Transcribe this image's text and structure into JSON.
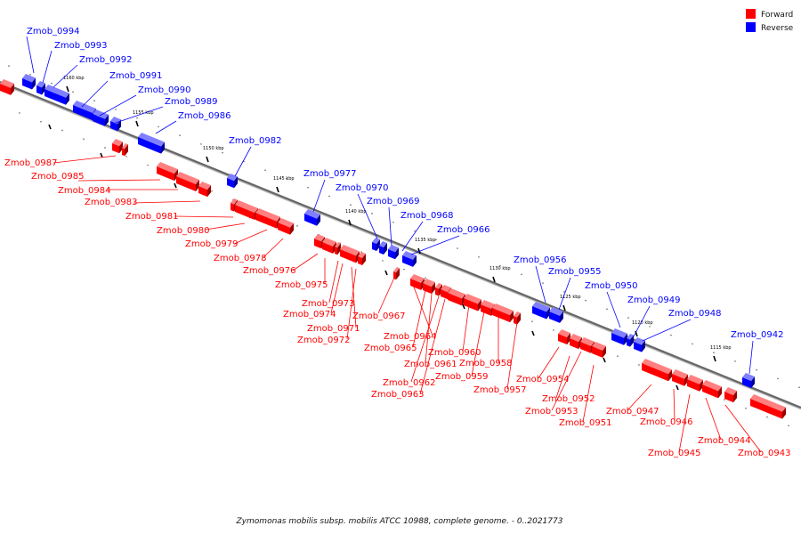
{
  "caption": "Zymomonas mobilis subsp. mobilis ATCC 10988, complete genome. - 0..2021773",
  "legend": [
    {
      "label": "Forward",
      "color": "#ff0000"
    },
    {
      "label": "Reverse",
      "color": "#0000ff"
    }
  ],
  "colors": {
    "forward": "#ff0000",
    "forward_dark": "#990000",
    "forward_light": "#ff8080",
    "reverse": "#0000ff",
    "reverse_dark": "#000099",
    "reverse_light": "#8080ff",
    "backbone": "#666666"
  },
  "ticks": [
    {
      "label": "1160 kbp"
    },
    {
      "label": "1155 kbp"
    },
    {
      "label": "1150 kbp"
    },
    {
      "label": "1145 kbp"
    },
    {
      "label": "1140 kbp"
    },
    {
      "label": "1135 kbp"
    },
    {
      "label": "1130 kbp"
    },
    {
      "label": "1125 kbp"
    },
    {
      "label": "1120 kbp"
    },
    {
      "label": "1115 kbp"
    }
  ],
  "reverse_genes": [
    {
      "label": "Zmob_0994"
    },
    {
      "label": "Zmob_0993"
    },
    {
      "label": "Zmob_0992"
    },
    {
      "label": "Zmob_0991"
    },
    {
      "label": "Zmob_0990"
    },
    {
      "label": "Zmob_0989"
    },
    {
      "label": "Zmob_0986"
    },
    {
      "label": "Zmob_0982"
    },
    {
      "label": "Zmob_0977"
    },
    {
      "label": "Zmob_0970"
    },
    {
      "label": "Zmob_0969"
    },
    {
      "label": "Zmob_0968"
    },
    {
      "label": "Zmob_0966"
    },
    {
      "label": "Zmob_0956"
    },
    {
      "label": "Zmob_0955"
    },
    {
      "label": "Zmob_0950"
    },
    {
      "label": "Zmob_0949"
    },
    {
      "label": "Zmob_0948"
    },
    {
      "label": "Zmob_0942"
    }
  ],
  "forward_genes": [
    {
      "label": "Zmob_0987"
    },
    {
      "label": "Zmob_0985"
    },
    {
      "label": "Zmob_0984"
    },
    {
      "label": "Zmob_0983"
    },
    {
      "label": "Zmob_0981"
    },
    {
      "label": "Zmob_0980"
    },
    {
      "label": "Zmob_0979"
    },
    {
      "label": "Zmob_0978"
    },
    {
      "label": "Zmob_0976"
    },
    {
      "label": "Zmob_0975"
    },
    {
      "label": "Zmob_0973"
    },
    {
      "label": "Zmob_0974"
    },
    {
      "label": "Zmob_0971"
    },
    {
      "label": "Zmob_0972"
    },
    {
      "label": "Zmob_0967"
    },
    {
      "label": "Zmob_0964"
    },
    {
      "label": "Zmob_0965"
    },
    {
      "label": "Zmob_0961"
    },
    {
      "label": "Zmob_0962"
    },
    {
      "label": "Zmob_0963"
    },
    {
      "label": "Zmob_0960"
    },
    {
      "label": "Zmob_0959"
    },
    {
      "label": "Zmob_0958"
    },
    {
      "label": "Zmob_0957"
    },
    {
      "label": "Zmob_0954"
    },
    {
      "label": "Zmob_0952"
    },
    {
      "label": "Zmob_0953"
    },
    {
      "label": "Zmob_0951"
    },
    {
      "label": "Zmob_0947"
    },
    {
      "label": "Zmob_0946"
    },
    {
      "label": "Zmob_0944"
    },
    {
      "label": "Zmob_0945"
    },
    {
      "label": "Zmob_0943"
    }
  ]
}
